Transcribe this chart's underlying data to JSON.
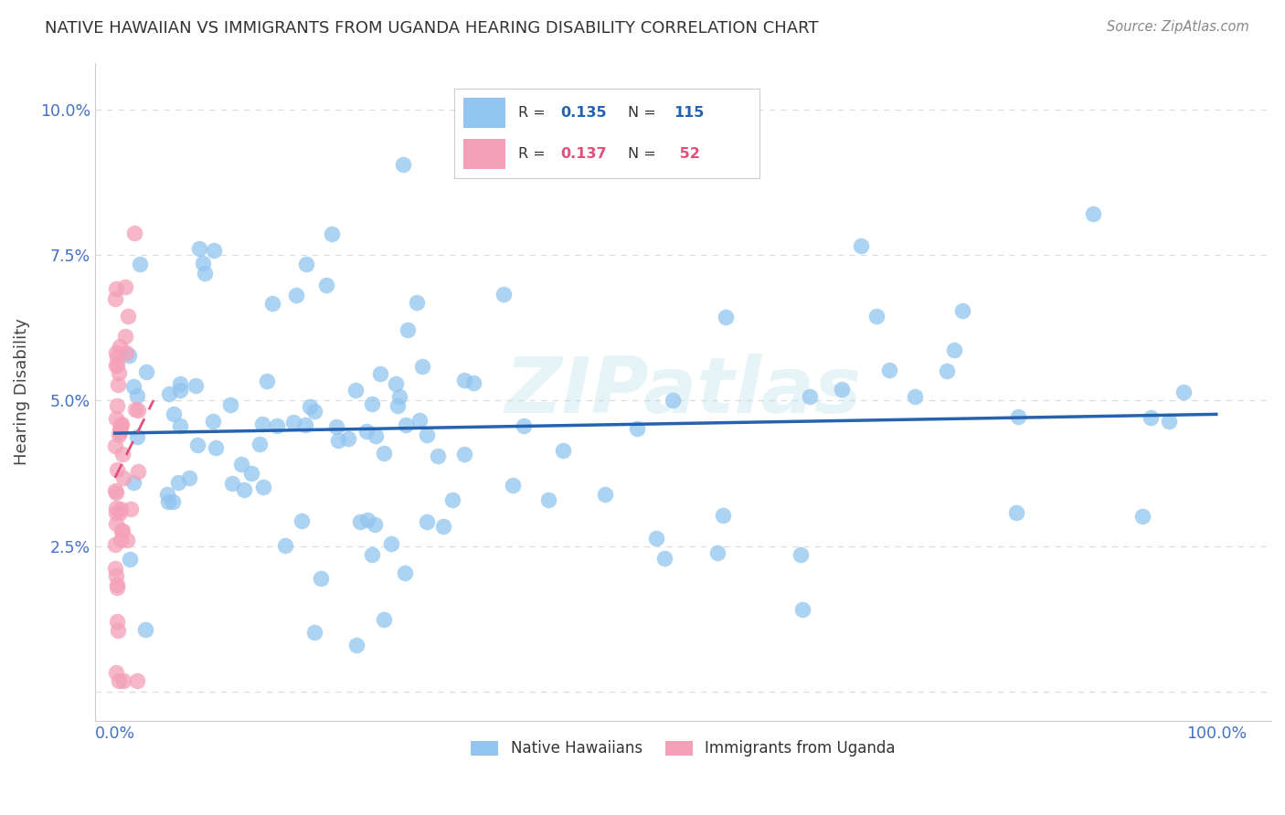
{
  "title": "NATIVE HAWAIIAN VS IMMIGRANTS FROM UGANDA HEARING DISABILITY CORRELATION CHART",
  "source": "Source: ZipAtlas.com",
  "ylabel": "Hearing Disability",
  "blue_color": "#92C5F0",
  "blue_line_color": "#2563B0",
  "pink_color": "#F4A0B8",
  "pink_line_color": "#E0507A",
  "blue_R": 0.135,
  "pink_R": 0.137,
  "blue_N": 115,
  "pink_N": 52,
  "watermark": "ZIPatlas",
  "background_color": "#FFFFFF",
  "grid_color": "#DDDDDD",
  "tick_color": "#4472C4",
  "title_color": "#333333",
  "source_color": "#888888",
  "legend_R_color": "#333333",
  "legend_border_color": "#CCCCCC"
}
